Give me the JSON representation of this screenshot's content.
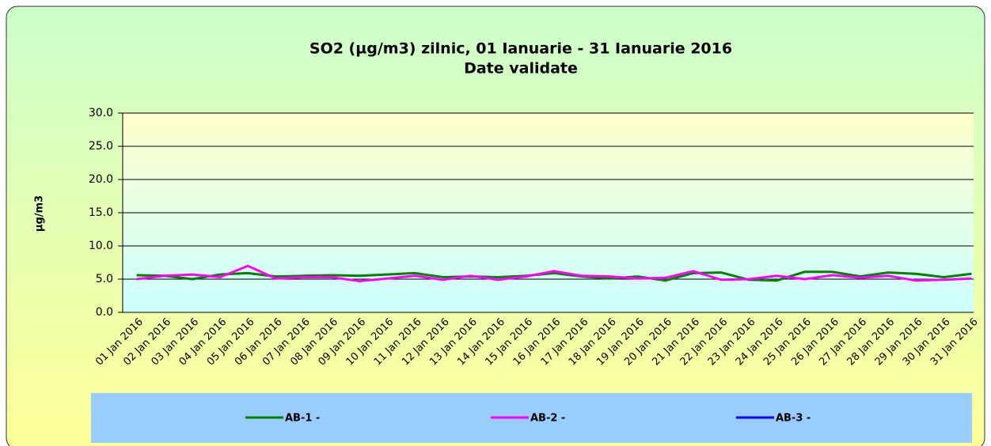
{
  "chart_data": {
    "type": "line",
    "title": "SO2 (µg/m3) zilnic,  01 Ianuarie - 31 Ianuarie 2016",
    "subtitle": "Date validate",
    "y_label": "µg/m3",
    "categories": [
      "01 Jan 2016",
      "02 Jan 2016",
      "03 Jan 2016",
      "04 Jan 2016",
      "05 Jan 2016",
      "06 Jan 2016",
      "07 Jan 2016",
      "08 Jan 2016",
      "09 Jan 2016",
      "10 Jan 2016",
      "11 Jan 2016",
      "12 Jan 2016",
      "13 Jan 2016",
      "14 Jan 2016",
      "15 Jan 2016",
      "16 Jan 2016",
      "17 Jan 2016",
      "18 Jan 2016",
      "19 Jan 2016",
      "20 Jan 2016",
      "21 Jan 2016",
      "22 Jan 2016",
      "23 Jan 2016",
      "24 Jan 2016",
      "25 Jan 2016",
      "26 Jan 2016",
      "27 Jan 2016",
      "28 Jan 2016",
      "29 Jan 2016",
      "30 Jan 2016",
      "31 Jan 2016"
    ],
    "series": [
      {
        "name": "AB-1 -",
        "color": "#008000",
        "values": [
          5.6,
          5.5,
          5.0,
          5.7,
          5.9,
          5.4,
          5.5,
          5.6,
          5.5,
          5.7,
          5.9,
          5.3,
          5.4,
          5.3,
          5.5,
          5.9,
          5.4,
          5.1,
          5.4,
          4.8,
          5.9,
          6.0,
          4.9,
          4.8,
          6.1,
          6.1,
          5.4,
          6.0,
          5.8,
          5.3,
          5.8
        ]
      },
      {
        "name": "AB-2 -",
        "color": "#ff00ff",
        "values": [
          5.0,
          5.5,
          5.7,
          5.3,
          7.0,
          5.1,
          5.3,
          5.3,
          4.7,
          5.1,
          5.5,
          4.9,
          5.5,
          4.9,
          5.4,
          6.2,
          5.5,
          5.4,
          5.1,
          5.2,
          6.2,
          4.9,
          5.0,
          5.5,
          5.0,
          5.6,
          5.2,
          5.5,
          4.8,
          4.9,
          5.1
        ]
      },
      {
        "name": "AB-3 -",
        "color": "#0000ff",
        "values": [
          null,
          null,
          null,
          null,
          null,
          null,
          null,
          null,
          null,
          null,
          null,
          null,
          null,
          null,
          null,
          null,
          null,
          null,
          null,
          null,
          null,
          null,
          null,
          null,
          null,
          null,
          null,
          null,
          null,
          null,
          null
        ]
      }
    ],
    "ylim": [
      0,
      30
    ],
    "yticks": [
      {
        "value": 0,
        "label": "0.0"
      },
      {
        "value": 5,
        "label": "5.0"
      },
      {
        "value": 10,
        "label": "10.0"
      },
      {
        "value": 15,
        "label": "15.0"
      },
      {
        "value": 20,
        "label": "20.0"
      },
      {
        "value": 25,
        "label": "25.0"
      },
      {
        "value": 30,
        "label": "30.0"
      }
    ],
    "grid": true
  }
}
